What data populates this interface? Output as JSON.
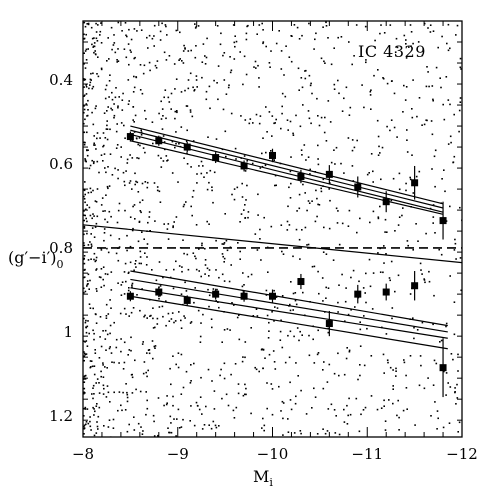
{
  "chart_data": {
    "type": "scatter",
    "title": "",
    "annotation": "IC 4329",
    "xlabel": "M",
    "xlabel_sub": "i",
    "ylabel": "(g′−i′)",
    "ylabel_sub": "0",
    "xlim": [
      -8,
      -12
    ],
    "ylim": [
      1.25,
      0.26
    ],
    "y_inverted": true,
    "x_inverted": true,
    "x_ticks": [
      -8,
      -9,
      -10,
      -11,
      -12
    ],
    "x_tick_labels": [
      "−8",
      "−9",
      "−10",
      "−11",
      "−12"
    ],
    "y_ticks": [
      0.4,
      0.6,
      0.8,
      1.0,
      1.2
    ],
    "y_tick_labels": [
      "0.4",
      "0.6",
      "0.8",
      "1",
      "1.2"
    ],
    "grid": false,
    "field_points": {
      "count": 1700,
      "x_range": [
        -8.0,
        -12.0
      ],
      "density_note": "dense at bright end -8 to -10, sparse at -10 to -12"
    },
    "divider_line": {
      "y": 0.8,
      "style": "dashed"
    },
    "blue_sequence": [
      {
        "x": -8.5,
        "y": 0.535,
        "err": 0.012
      },
      {
        "x": -8.8,
        "y": 0.545,
        "err": 0.012
      },
      {
        "x": -9.1,
        "y": 0.56,
        "err": 0.012
      },
      {
        "x": -9.4,
        "y": 0.585,
        "err": 0.013
      },
      {
        "x": -9.7,
        "y": 0.605,
        "err": 0.013
      },
      {
        "x": -10.0,
        "y": 0.58,
        "err": 0.016
      },
      {
        "x": -10.3,
        "y": 0.63,
        "err": 0.016
      },
      {
        "x": -10.6,
        "y": 0.625,
        "err": 0.022
      },
      {
        "x": -10.9,
        "y": 0.655,
        "err": 0.025
      },
      {
        "x": -11.2,
        "y": 0.69,
        "err": 0.025
      },
      {
        "x": -11.5,
        "y": 0.645,
        "err": 0.04
      },
      {
        "x": -11.8,
        "y": 0.735,
        "err": 0.045
      }
    ],
    "red_sequence": [
      {
        "x": -8.5,
        "y": 0.915,
        "err": 0.012
      },
      {
        "x": -8.8,
        "y": 0.905,
        "err": 0.012
      },
      {
        "x": -9.1,
        "y": 0.925,
        "err": 0.012
      },
      {
        "x": -9.4,
        "y": 0.91,
        "err": 0.013
      },
      {
        "x": -9.7,
        "y": 0.915,
        "err": 0.013
      },
      {
        "x": -10.0,
        "y": 0.915,
        "err": 0.016
      },
      {
        "x": -10.3,
        "y": 0.88,
        "err": 0.018
      },
      {
        "x": -10.6,
        "y": 0.98,
        "err": 0.03
      },
      {
        "x": -10.9,
        "y": 0.91,
        "err": 0.022
      },
      {
        "x": -11.2,
        "y": 0.905,
        "err": 0.02
      },
      {
        "x": -11.5,
        "y": 0.89,
        "err": 0.035
      },
      {
        "x": -11.8,
        "y": 1.085,
        "err": 0.07
      }
    ],
    "fit_lines": [
      {
        "x": [
          -8.5,
          -11.8
        ],
        "y": [
          0.51,
          0.695
        ]
      },
      {
        "x": [
          -8.5,
          -11.8
        ],
        "y": [
          0.52,
          0.705
        ]
      },
      {
        "x": [
          -8.5,
          -11.8
        ],
        "y": [
          0.53,
          0.715
        ]
      },
      {
        "x": [
          -8.5,
          -11.8
        ],
        "y": [
          0.545,
          0.72
        ]
      },
      {
        "x": [
          -8.0,
          -12.0
        ],
        "y": [
          0.745,
          0.835
        ]
      },
      {
        "x": [
          -8.5,
          -11.85
        ],
        "y": [
          0.855,
          0.985
        ]
      },
      {
        "x": [
          -8.5,
          -11.85
        ],
        "y": [
          0.875,
          1.0
        ]
      },
      {
        "x": [
          -8.5,
          -11.85
        ],
        "y": [
          0.895,
          1.015
        ]
      },
      {
        "x": [
          -8.5,
          -11.85
        ],
        "y": [
          0.915,
          1.04
        ]
      }
    ]
  }
}
